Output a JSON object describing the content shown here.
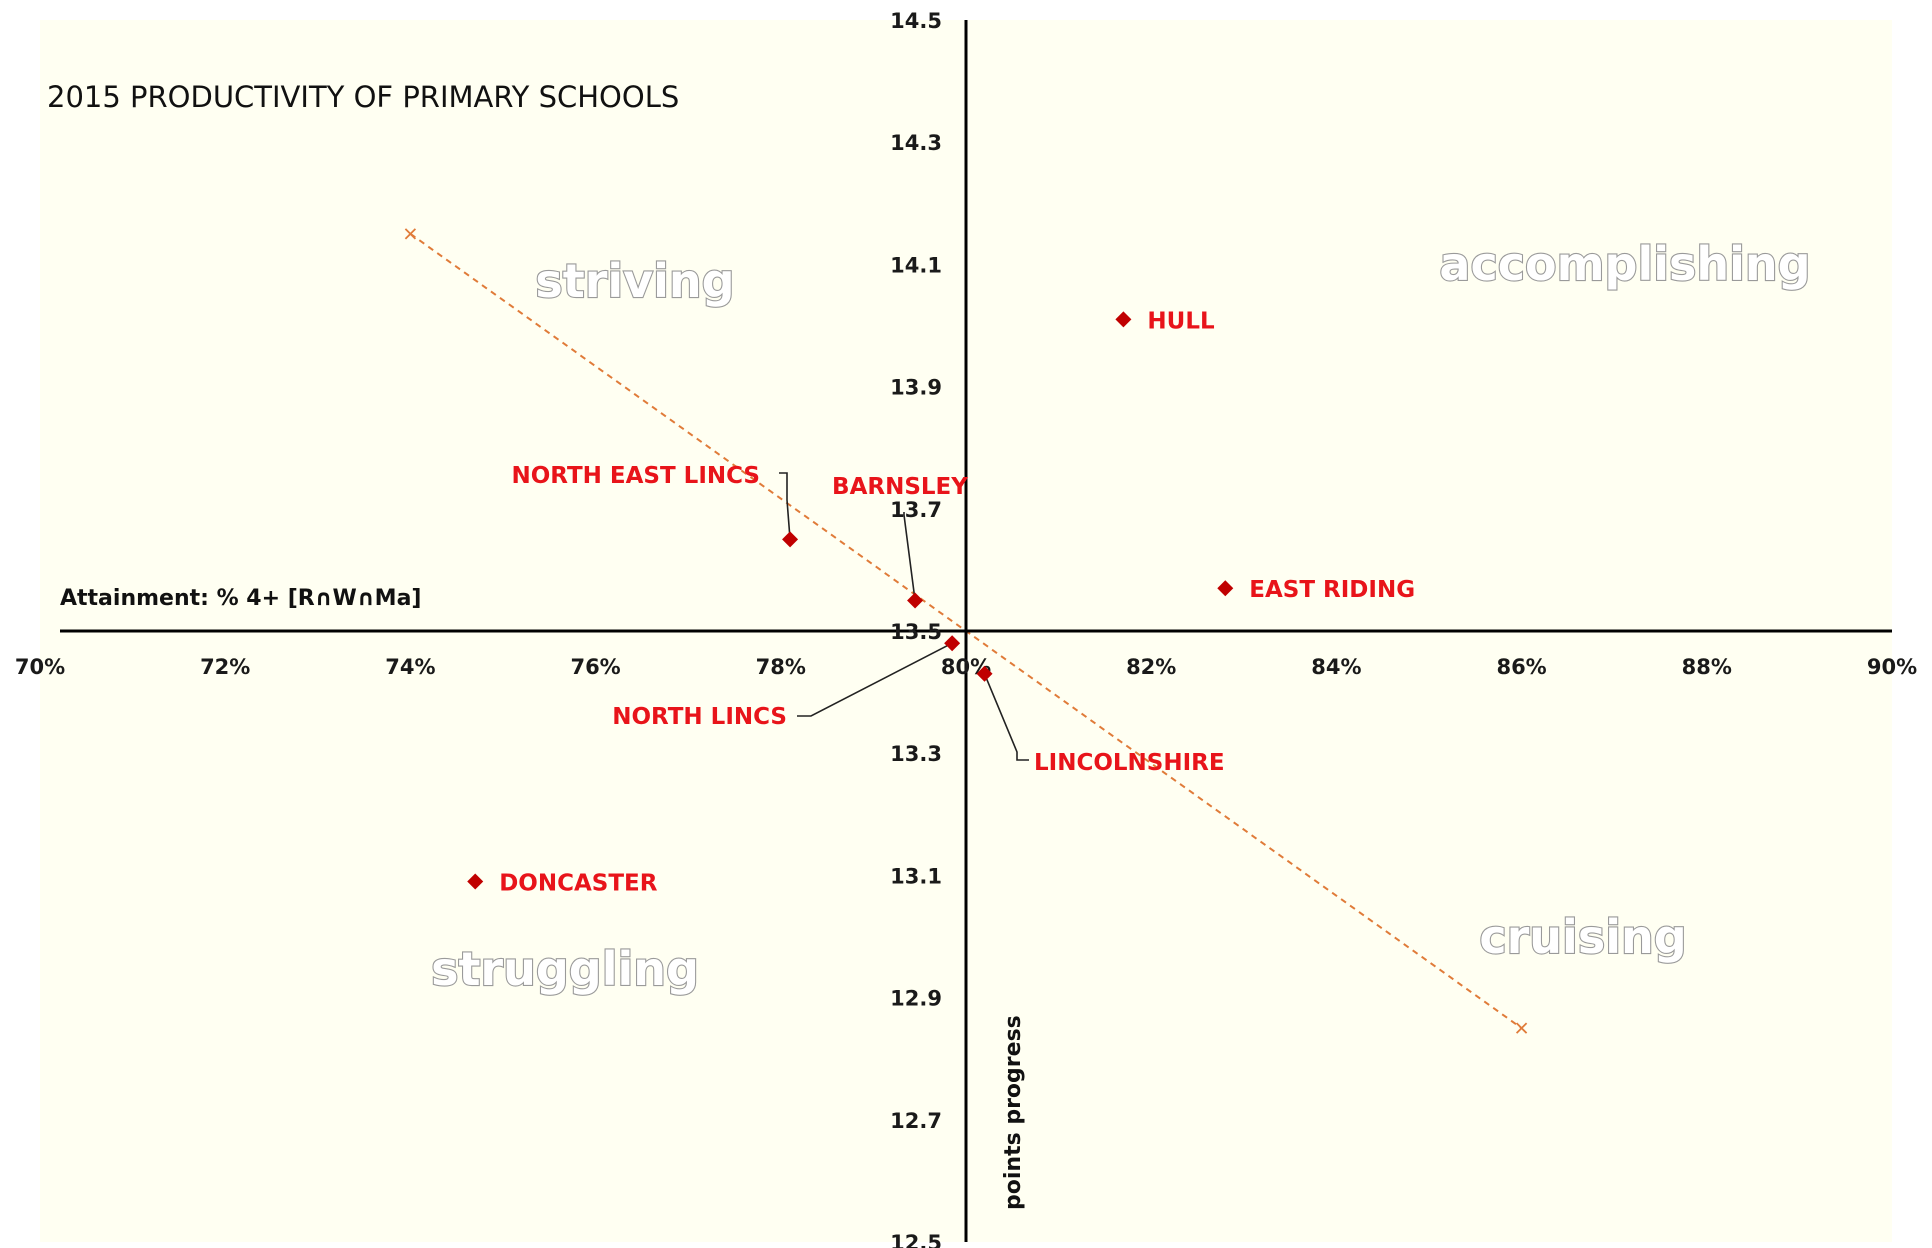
{
  "chart_data": {
    "type": "scatter",
    "title": "2015  PRODUCTIVITY OF  PRIMARY SCHOOLS",
    "xlabel": "Attainment: % 4+ [R∩W∩Ma]",
    "ylabel": "points progress",
    "xlim": [
      0.7,
      0.9
    ],
    "ylim": [
      12.5,
      14.5
    ],
    "x_ticks": [
      "70%",
      "72%",
      "74%",
      "76%",
      "78%",
      "80%",
      "82%",
      "84%",
      "86%",
      "88%",
      "90%"
    ],
    "x_tick_values": [
      0.7,
      0.72,
      0.74,
      0.76,
      0.78,
      0.8,
      0.82,
      0.84,
      0.86,
      0.88,
      0.9
    ],
    "y_ticks": [
      "14.5",
      "14.3",
      "14.1",
      "13.9",
      "13.7",
      "13.5",
      "13.3",
      "13.1",
      "12.9",
      "12.7",
      "12.5"
    ],
    "y_tick_values": [
      14.5,
      14.3,
      14.1,
      13.9,
      13.7,
      13.5,
      13.3,
      13.1,
      12.9,
      12.7,
      12.5
    ],
    "axes_cross": {
      "x": 0.8,
      "y": 13.5
    },
    "grid": false,
    "series": [
      {
        "marker": "diamond",
        "color": "#c00000",
        "points": [
          {
            "label": "HULL",
            "x": 0.817,
            "y": 14.01
          },
          {
            "label": "EAST RIDING",
            "x": 0.828,
            "y": 13.57
          },
          {
            "label": "NORTH EAST LINCS",
            "x": 0.781,
            "y": 13.65
          },
          {
            "label": "BARNSLEY",
            "x": 0.7945,
            "y": 13.55
          },
          {
            "label": "NORTH LINCS",
            "x": 0.7985,
            "y": 13.48
          },
          {
            "label": "LINCOLNSHIRE",
            "x": 0.802,
            "y": 13.43
          },
          {
            "label": "DONCASTER",
            "x": 0.747,
            "y": 13.09
          }
        ]
      }
    ],
    "trendline": {
      "from": {
        "x": 0.74,
        "y": 14.15
      },
      "to": {
        "x": 0.86,
        "y": 12.85
      },
      "color": "#e07b39"
    },
    "quadrant_labels": {
      "top_left": "striving",
      "top_right": "accomplishing",
      "bottom_left": "struggling",
      "bottom_right": "cruising"
    },
    "colors": {
      "plot_background": "#fffff2",
      "label": "#e8141a",
      "marker": "#c00000",
      "axis": "#000000"
    }
  }
}
